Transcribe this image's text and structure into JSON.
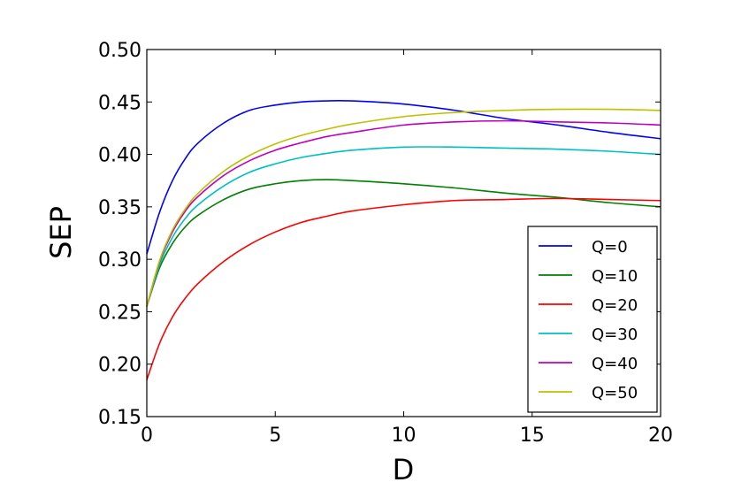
{
  "chart_data": {
    "type": "line",
    "title": "",
    "xlabel": "D",
    "ylabel": "SEP",
    "xlim": [
      0,
      20
    ],
    "ylim": [
      0.15,
      0.5
    ],
    "x_ticks": [
      0,
      5,
      10,
      15,
      20
    ],
    "x_tick_labels": [
      "0",
      "5",
      "10",
      "15",
      "20"
    ],
    "y_ticks": [
      0.15,
      0.2,
      0.25,
      0.3,
      0.35,
      0.4,
      0.45,
      0.5
    ],
    "y_tick_labels": [
      "0.15",
      "0.20",
      "0.25",
      "0.30",
      "0.35",
      "0.40",
      "0.45",
      "0.50"
    ],
    "grid": false,
    "legend_position": "bottom-right",
    "x": [
      0,
      0.5,
      1,
      1.5,
      2,
      3,
      4,
      5,
      6,
      7,
      8,
      10,
      12,
      14,
      16,
      18,
      20
    ],
    "series": [
      {
        "name": "Q=0",
        "color": "#0000ff",
        "values": [
          0.305,
          0.345,
          0.375,
          0.396,
          0.411,
          0.43,
          0.442,
          0.447,
          0.45,
          0.451,
          0.451,
          0.448,
          0.442,
          0.434,
          0.428,
          0.421,
          0.415
        ]
      },
      {
        "name": "Q=10",
        "color": "#008000",
        "values": [
          0.255,
          0.292,
          0.315,
          0.331,
          0.342,
          0.357,
          0.367,
          0.372,
          0.375,
          0.376,
          0.375,
          0.372,
          0.368,
          0.363,
          0.359,
          0.354,
          0.35
        ]
      },
      {
        "name": "Q=20",
        "color": "#ff0000",
        "values": [
          0.185,
          0.22,
          0.245,
          0.263,
          0.277,
          0.298,
          0.314,
          0.326,
          0.335,
          0.341,
          0.346,
          0.352,
          0.356,
          0.357,
          0.358,
          0.357,
          0.356
        ]
      },
      {
        "name": "Q=30",
        "color": "#00bfbf",
        "values": [
          0.255,
          0.295,
          0.321,
          0.339,
          0.352,
          0.37,
          0.383,
          0.391,
          0.397,
          0.401,
          0.404,
          0.407,
          0.407,
          0.406,
          0.405,
          0.403,
          0.4
        ]
      },
      {
        "name": "Q=40",
        "color": "#bf00bf",
        "values": [
          0.255,
          0.298,
          0.326,
          0.346,
          0.36,
          0.38,
          0.394,
          0.404,
          0.411,
          0.417,
          0.421,
          0.428,
          0.431,
          0.432,
          0.431,
          0.43,
          0.428
        ]
      },
      {
        "name": "Q=50",
        "color": "#bfbf00",
        "values": [
          0.255,
          0.299,
          0.328,
          0.348,
          0.363,
          0.384,
          0.399,
          0.41,
          0.418,
          0.424,
          0.429,
          0.436,
          0.44,
          0.442,
          0.443,
          0.443,
          0.442
        ]
      }
    ]
  }
}
